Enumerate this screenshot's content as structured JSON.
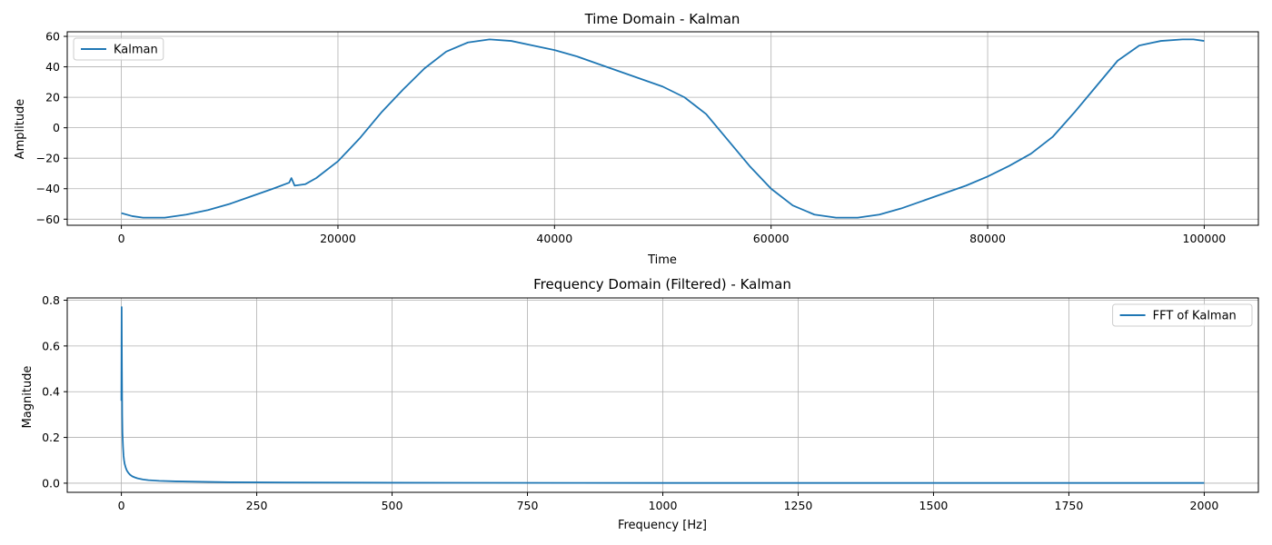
{
  "chart_data": [
    {
      "type": "line",
      "title": "Time Domain - Kalman",
      "xlabel": "Time",
      "ylabel": "Amplitude",
      "xlim": [
        -5000,
        105000
      ],
      "ylim": [
        -64,
        63
      ],
      "xticks": [
        0,
        20000,
        40000,
        60000,
        80000,
        100000
      ],
      "yticks": [
        -60,
        -40,
        -20,
        0,
        20,
        40,
        60
      ],
      "grid": true,
      "legend": "upper left",
      "color": "#1f77b4",
      "series": [
        {
          "name": "Kalman",
          "x": [
            0,
            1000,
            2000,
            3000,
            4000,
            6000,
            8000,
            10000,
            12000,
            14000,
            15500,
            15700,
            16000,
            17000,
            18000,
            20000,
            22000,
            24000,
            26000,
            28000,
            30000,
            32000,
            34000,
            36000,
            38000,
            40000,
            42000,
            44000,
            46000,
            48000,
            50000,
            52000,
            54000,
            56000,
            58000,
            60000,
            62000,
            64000,
            66000,
            68000,
            70000,
            72000,
            74000,
            76000,
            78000,
            80000,
            82000,
            84000,
            86000,
            88000,
            90000,
            92000,
            94000,
            96000,
            98000,
            99000,
            100000
          ],
          "y": [
            -56,
            -58,
            -59,
            -59,
            -59,
            -57,
            -54,
            -50,
            -45,
            -40,
            -36,
            -33,
            -38,
            -37,
            -33,
            -22,
            -7,
            10,
            25,
            39,
            50,
            56,
            58,
            57,
            54,
            51,
            47,
            42,
            37,
            32,
            27,
            20,
            9,
            -8,
            -25,
            -40,
            -51,
            -57,
            -59,
            -59,
            -57,
            -53,
            -48,
            -43,
            -38,
            -32,
            -25,
            -17,
            -6,
            10,
            27,
            44,
            54,
            57,
            58,
            58,
            57
          ]
        }
      ]
    },
    {
      "type": "line",
      "title": "Frequency Domain (Filtered) - Kalman",
      "xlabel": "Frequency [Hz]",
      "ylabel": "Magnitude",
      "xlim": [
        -100,
        2100
      ],
      "ylim": [
        -0.04,
        0.81
      ],
      "xticks": [
        0,
        250,
        500,
        750,
        1000,
        1250,
        1500,
        1750,
        2000
      ],
      "yticks": [
        0.0,
        0.2,
        0.4,
        0.6,
        0.8
      ],
      "ytick_labels": [
        "0.0",
        "0.2",
        "0.4",
        "0.6",
        "0.8"
      ],
      "grid": true,
      "legend": "upper right",
      "color": "#1f77b4",
      "series": [
        {
          "name": "FFT of Kalman",
          "x": [
            0,
            0.5,
            1,
            1.5,
            2,
            3,
            4,
            5,
            6,
            8,
            10,
            13,
            16,
            20,
            25,
            30,
            40,
            50,
            70,
            100,
            150,
            200,
            300,
            500,
            1000,
            1500,
            2000
          ],
          "y": [
            0.36,
            0.77,
            0.5,
            0.3,
            0.22,
            0.16,
            0.12,
            0.1,
            0.085,
            0.068,
            0.056,
            0.045,
            0.037,
            0.03,
            0.025,
            0.021,
            0.016,
            0.013,
            0.01,
            0.008,
            0.006,
            0.004,
            0.003,
            0.002,
            0.001,
            0.001,
            0.001
          ]
        }
      ]
    }
  ]
}
